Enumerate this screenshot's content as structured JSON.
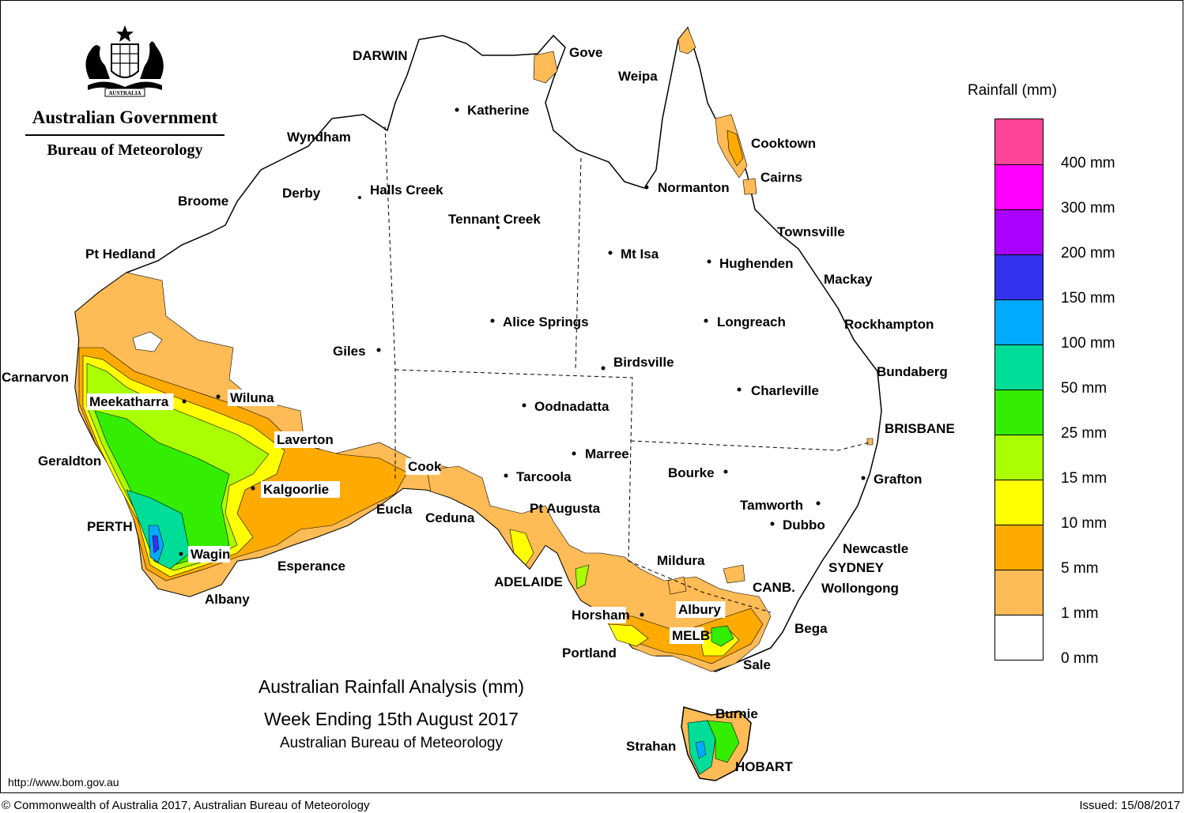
{
  "agency": {
    "line1": "Australian Government",
    "line2": "Bureau of Meteorology",
    "crest_text": "AUSTRALIA"
  },
  "legend": {
    "title": "Rainfall (mm)",
    "bands": [
      {
        "color": "#ff4499",
        "label": ""
      },
      {
        "color": "#ff00ff",
        "label": "400 mm"
      },
      {
        "color": "#aa00ff",
        "label": "300 mm"
      },
      {
        "color": "#3333ee",
        "label": "200 mm"
      },
      {
        "color": "#00aaff",
        "label": "150 mm"
      },
      {
        "color": "#00dd99",
        "label": "100 mm"
      },
      {
        "color": "#33ee00",
        "label": "50 mm"
      },
      {
        "color": "#aaff00",
        "label": "25 mm"
      },
      {
        "color": "#ffff00",
        "label": "15 mm"
      },
      {
        "color": "#ffaa00",
        "label": "10 mm"
      },
      {
        "color": "#ffbb55",
        "label": "5 mm"
      },
      {
        "color": "#ffffff",
        "label": "1 mm"
      }
    ],
    "bottom_label": "0 mm"
  },
  "map_title": {
    "line1": "Australian Rainfall Analysis (mm)",
    "line2": "Week Ending 15th August 2017",
    "line3": "Australian Bureau of Meteorology"
  },
  "footer": {
    "url": "http://www.bom.gov.au",
    "copyright": "© Commonwealth of Australia 2017, Australian Bureau of Meteorology",
    "issued": "Issued: 15/08/2017"
  },
  "places": [
    "DARWIN",
    "Gove",
    "Weipa",
    "Katherine",
    "Wyndham",
    "Cooktown",
    "Cairns",
    "Derby",
    "Halls Creek",
    "Broome",
    "Normanton",
    "Tennant Creek",
    "Townsville",
    "Pt Hedland",
    "Mt Isa",
    "Hughenden",
    "Mackay",
    "Alice Springs",
    "Longreach",
    "Rockhampton",
    "Giles",
    "Birdsville",
    "Bundaberg",
    "Carnarvon",
    "Wiluna",
    "Charleville",
    "Meekatharra",
    "Oodnadatta",
    "BRISBANE",
    "Laverton",
    "Marree",
    "Geraldton",
    "Cook",
    "Tarcoola",
    "Bourke",
    "Grafton",
    "Kalgoorlie",
    "Tamworth",
    "Eucla",
    "Pt Augusta",
    "Ceduna",
    "Dubbo",
    "PERTH",
    "Newcastle",
    "Wagin",
    "Mildura",
    "SYDNEY",
    "Esperance",
    "ADELAIDE",
    "Wollongong",
    "CANB.",
    "Albany",
    "Albury",
    "Horsham",
    "Bega",
    "MELB",
    "Portland",
    "Sale",
    "Burnie",
    "Strahan",
    "HOBART"
  ]
}
